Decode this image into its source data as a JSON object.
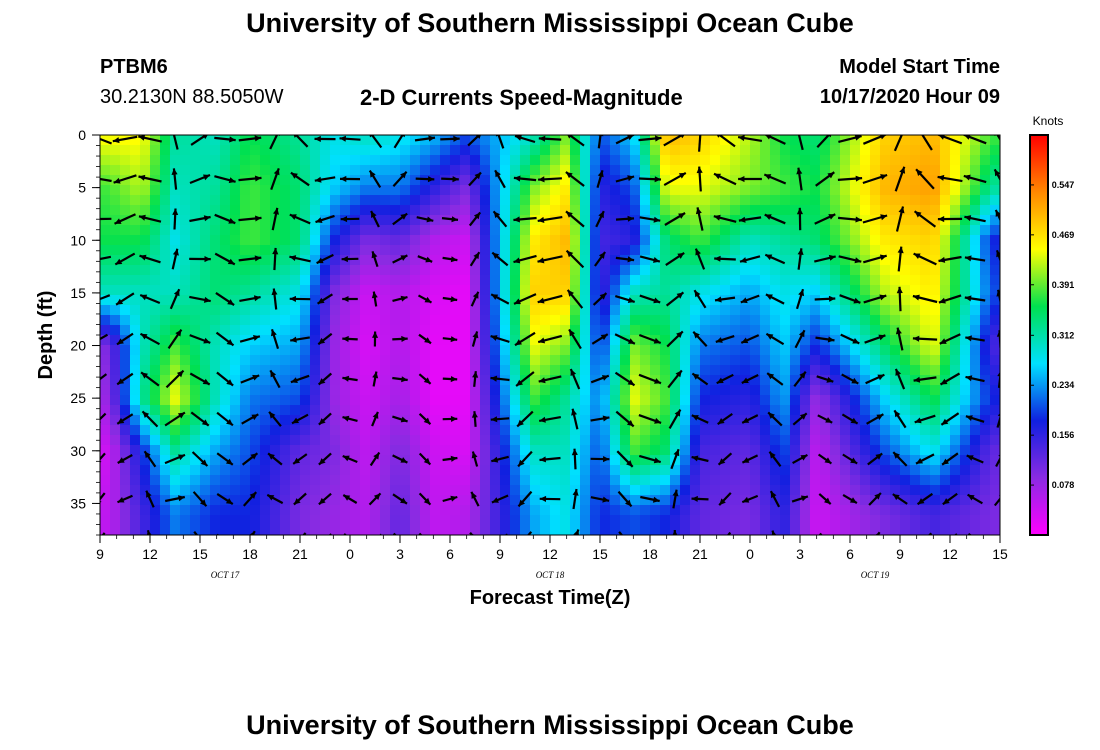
{
  "page": {
    "title_top": "University of Southern Mississippi Ocean Cube",
    "title_bottom": "University of Southern Mississippi Ocean Cube",
    "station": "PTBM6",
    "location": "30.2130N 88.5050W",
    "subtitle": "2-D Currents Speed-Magnitude",
    "model_start_label": "Model Start Time",
    "model_start_value": "10/17/2020 Hour 09"
  },
  "chart_data": {
    "type": "heatmap",
    "title": "2-D Currents Speed-Magnitude",
    "xlabel": "Forecast Time(Z)",
    "ylabel": "Depth (ft)",
    "x_ticks": [
      "9",
      "12",
      "15",
      "18",
      "21",
      "0",
      "3",
      "6",
      "9",
      "12",
      "15",
      "18",
      "21",
      "0",
      "3",
      "6",
      "9",
      "12",
      "15"
    ],
    "x_range_hours": [
      0,
      54
    ],
    "date_labels": [
      {
        "label": "OCT 17",
        "hour": 7.5
      },
      {
        "label": "OCT 18",
        "hour": 27
      },
      {
        "label": "OCT 19",
        "hour": 46.5
      }
    ],
    "y_ticks": [
      0,
      5,
      10,
      15,
      20,
      25,
      30,
      35
    ],
    "ylim": [
      0,
      38
    ],
    "y_inverted": true,
    "colorbar": {
      "title": "Knots",
      "ticks": [
        0.547,
        0.469,
        0.391,
        0.312,
        0.234,
        0.156,
        0.078
      ],
      "range": [
        0,
        0.625
      ],
      "colors": [
        "#ff00ff",
        "#8a2be2",
        "#1020e0",
        "#00e0ff",
        "#00e050",
        "#ffff00",
        "#ff8800",
        "#ff0000"
      ]
    },
    "time_hours": [
      0,
      1.5,
      3,
      4.5,
      6,
      7.5,
      9,
      10.5,
      12,
      13.5,
      15,
      16.5,
      18,
      19.5,
      21,
      22.5,
      24,
      25.5,
      27,
      28.5,
      30,
      31.5,
      33,
      34.5,
      36,
      37.5,
      39,
      40.5,
      42,
      43.5,
      45,
      46.5,
      48,
      49.5,
      51,
      52.5,
      54
    ],
    "depth_ft": [
      0,
      3.8,
      7.6,
      11.4,
      15.2,
      19,
      22.8,
      26.6,
      30.4,
      34.2,
      38
    ],
    "speed_knots": [
      [
        0.45,
        0.38,
        0.36,
        0.3,
        0.1,
        0.08,
        0.04,
        0.05
      ],
      [
        0.45,
        0.42,
        0.36,
        0.3,
        0.3,
        0.32,
        0.18,
        0.14
      ],
      [
        0.32,
        0.3,
        0.28,
        0.3,
        0.38,
        0.44,
        0.32,
        0.22
      ],
      [
        0.3,
        0.32,
        0.34,
        0.34,
        0.3,
        0.3,
        0.24,
        0.18
      ],
      [
        0.36,
        0.38,
        0.38,
        0.32,
        0.26,
        0.22,
        0.2,
        0.18
      ],
      [
        0.32,
        0.34,
        0.34,
        0.28,
        0.24,
        0.2,
        0.12,
        0.1
      ],
      [
        0.28,
        0.26,
        0.18,
        0.1,
        0.08,
        0.08,
        0.1,
        0.08
      ],
      [
        0.3,
        0.22,
        0.1,
        0.04,
        0.03,
        0.04,
        0.05,
        0.06
      ],
      [
        0.28,
        0.22,
        0.12,
        0.06,
        0.06,
        0.07,
        0.1,
        0.12
      ],
      [
        0.25,
        0.16,
        0.06,
        0.03,
        0.02,
        0.02,
        0.04,
        0.05
      ],
      [
        0.2,
        0.1,
        0.04,
        0.02,
        0.02,
        0.02,
        0.03,
        0.06
      ],
      [
        0.3,
        0.4,
        0.46,
        0.48,
        0.44,
        0.38,
        0.3,
        0.24
      ],
      [
        0.4,
        0.46,
        0.5,
        0.48,
        0.4,
        0.32,
        0.3,
        0.28
      ],
      [
        0.2,
        0.16,
        0.14,
        0.14,
        0.18,
        0.22,
        0.2,
        0.18
      ],
      [
        0.26,
        0.2,
        0.16,
        0.3,
        0.4,
        0.44,
        0.38,
        0.2
      ],
      [
        0.5,
        0.44,
        0.34,
        0.32,
        0.36,
        0.38,
        0.34,
        0.18
      ],
      [
        0.48,
        0.44,
        0.38,
        0.28,
        0.22,
        0.18,
        0.14,
        0.12
      ],
      [
        0.42,
        0.4,
        0.3,
        0.24,
        0.2,
        0.16,
        0.12,
        0.1
      ],
      [
        0.36,
        0.38,
        0.32,
        0.28,
        0.26,
        0.24,
        0.2,
        0.16
      ],
      [
        0.34,
        0.36,
        0.34,
        0.26,
        0.18,
        0.08,
        0.05,
        0.04
      ],
      [
        0.48,
        0.5,
        0.46,
        0.42,
        0.34,
        0.26,
        0.2,
        0.1
      ],
      [
        0.5,
        0.52,
        0.48,
        0.46,
        0.44,
        0.36,
        0.28,
        0.14
      ],
      [
        0.38,
        0.32,
        0.18,
        0.2,
        0.14,
        0.18,
        0.12,
        0.1
      ]
    ],
    "speed_columns_hours": [
      0.5,
      2.5,
      4.5,
      7,
      9,
      12,
      14,
      16,
      18,
      20,
      22,
      26,
      28,
      30,
      32,
      34,
      36,
      39,
      41,
      43,
      47,
      50,
      53.5
    ],
    "speed_rows_depth_ft": [
      0,
      5,
      10,
      15,
      20,
      25,
      30,
      36
    ]
  }
}
